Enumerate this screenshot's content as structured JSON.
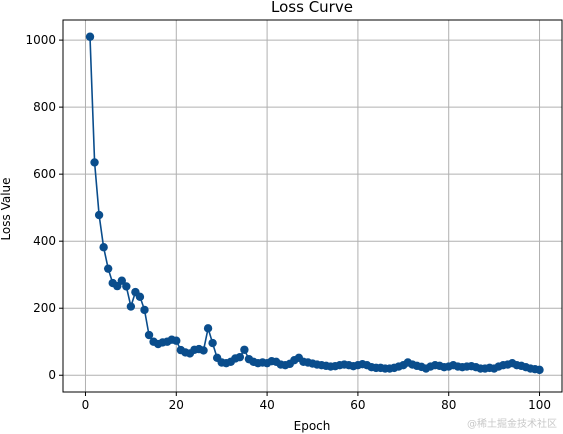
{
  "chart_data": {
    "type": "line",
    "title": "Loss Curve",
    "xlabel": "Epoch",
    "ylabel": "Loss Value",
    "xlim": [
      -4.95,
      104.95
    ],
    "ylim": [
      -50,
      1060
    ],
    "xticks": [
      0,
      20,
      40,
      60,
      80,
      100
    ],
    "yticks": [
      0,
      200,
      400,
      600,
      800,
      1000
    ],
    "grid": true,
    "markers": true,
    "line_color": "#0a4d8c",
    "series": [
      {
        "x": [
          1,
          2,
          3,
          4,
          5,
          6,
          7,
          8,
          9,
          10,
          11,
          12,
          13,
          14,
          15,
          16,
          17,
          18,
          19,
          20,
          21,
          22,
          23,
          24,
          25,
          26,
          27,
          28,
          29,
          30,
          31,
          32,
          33,
          34,
          35,
          36,
          37,
          38,
          39,
          40,
          41,
          42,
          43,
          44,
          45,
          46,
          47,
          48,
          49,
          50,
          51,
          52,
          53,
          54,
          55,
          56,
          57,
          58,
          59,
          60,
          61,
          62,
          63,
          64,
          65,
          66,
          67,
          68,
          69,
          70,
          71,
          72,
          73,
          74,
          75,
          76,
          77,
          78,
          79,
          80,
          81,
          82,
          83,
          84,
          85,
          86,
          87,
          88,
          89,
          90,
          91,
          92,
          93,
          94,
          95,
          96,
          97,
          98,
          99,
          100
        ],
        "values": [
          1010,
          635,
          478,
          382,
          318,
          275,
          266,
          282,
          265,
          205,
          248,
          234,
          195,
          120,
          100,
          93,
          98,
          100,
          106,
          103,
          75,
          68,
          65,
          76,
          78,
          74,
          140,
          96,
          52,
          38,
          36,
          40,
          50,
          54,
          76,
          48,
          40,
          36,
          38,
          36,
          42,
          40,
          32,
          30,
          34,
          45,
          52,
          40,
          38,
          35,
          32,
          30,
          28,
          26,
          27,
          30,
          32,
          30,
          27,
          30,
          33,
          30,
          24,
          22,
          22,
          20,
          20,
          22,
          26,
          30,
          38,
          32,
          28,
          25,
          20,
          26,
          30,
          28,
          24,
          26,
          30,
          26,
          24,
          26,
          27,
          24,
          20,
          20,
          22,
          20,
          26,
          30,
          32,
          36,
          30,
          28,
          24,
          20,
          18,
          16
        ]
      }
    ]
  },
  "watermark": "@稀土掘金技术社区",
  "colors": {
    "grid": "#b0b0b0",
    "marker": "#0a4d8c",
    "axes": "#000000"
  }
}
